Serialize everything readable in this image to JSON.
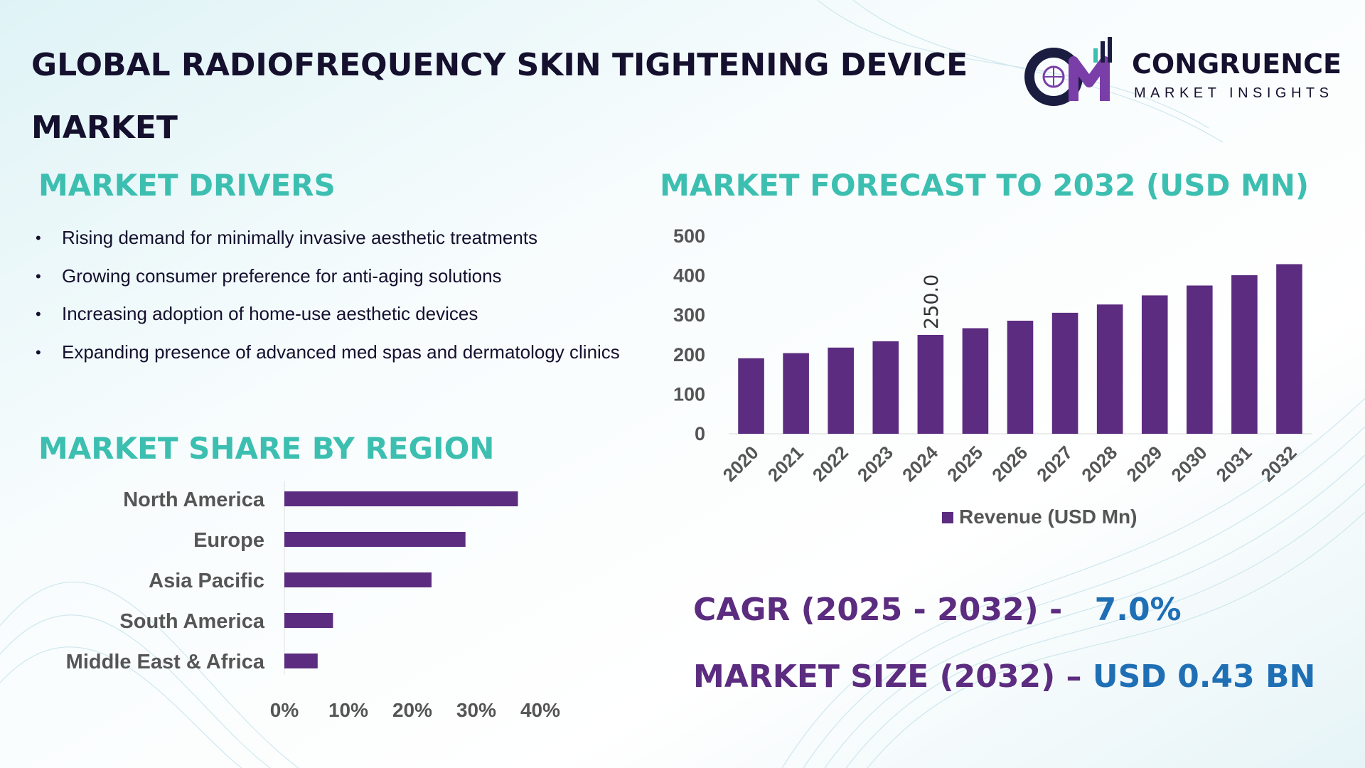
{
  "title": "GLOBAL RADIOFREQUENCY SKIN TIGHTENING DEVICE MARKET",
  "logo": {
    "name": "CONGRUENCE",
    "tagline": "MARKET INSIGHTS",
    "monogram": "CM"
  },
  "drivers": {
    "heading": "MARKET DRIVERS",
    "items": [
      "Rising demand for minimally invasive aesthetic treatments",
      "Growing consumer preference for anti-aging solutions",
      "Increasing adoption of home-use aesthetic devices",
      "Expanding presence of advanced med spas and dermatology clinics"
    ]
  },
  "forecast_heading": "MARKET FORECAST TO 2032 (USD MN)",
  "region_heading": "MARKET SHARE BY REGION",
  "stats": {
    "cagr_label": "CAGR (2025 - 2032) -",
    "cagr_value": "7.0%",
    "size_label": "MARKET SIZE (2032) –",
    "size_value": "USD 0.43 BN"
  },
  "colors": {
    "bar": "#5b2c7f",
    "heading": "#3cbfb0",
    "value": "#1f6fb5",
    "title": "#14102e"
  },
  "chart_data": [
    {
      "type": "bar",
      "categories": [
        "2020",
        "2021",
        "2022",
        "2023",
        "2024",
        "2025",
        "2026",
        "2027",
        "2028",
        "2029",
        "2030",
        "2031",
        "2032"
      ],
      "series": [
        {
          "name": "Revenue (USD Mn)",
          "values": [
            191,
            204,
            218,
            234,
            250,
            267,
            286,
            306,
            327,
            350,
            375,
            401,
            429
          ]
        }
      ],
      "ylim": [
        0,
        500
      ],
      "yticks": [
        0,
        100,
        200,
        300,
        400,
        500
      ],
      "data_labels": [
        {
          "category": "2024",
          "text": "250.0"
        }
      ],
      "legend": "bottom",
      "grid": false
    },
    {
      "type": "bar",
      "orientation": "horizontal",
      "categories": [
        "North America",
        "Europe",
        "Asia Pacific",
        "South America",
        "Middle East & Africa"
      ],
      "values": [
        36.5,
        28.3,
        23.0,
        7.6,
        5.2
      ],
      "xlim": [
        0,
        40
      ],
      "xticks": [
        "0%",
        "10%",
        "20%",
        "30%",
        "40%"
      ],
      "grid": false
    }
  ]
}
